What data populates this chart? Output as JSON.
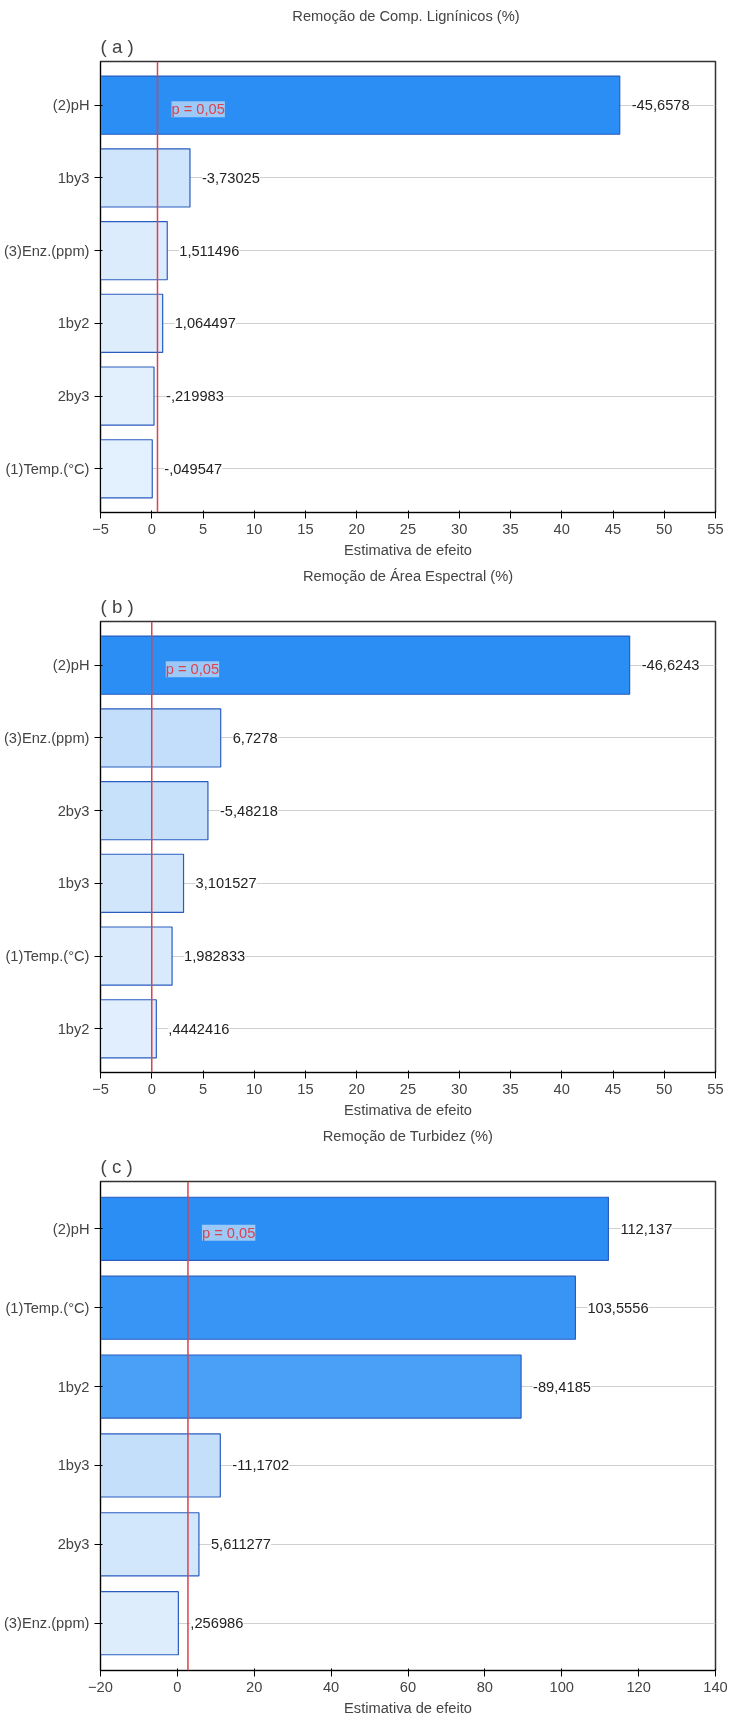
{
  "chart_data": [
    {
      "type": "bar",
      "orientation": "horizontal",
      "title": "Remoção de Comp. Lignínicos  (%)",
      "xlabel": "Estimativa de efeito",
      "categories": [
        "(2)pH",
        "1by3",
        "(3)Enz.(ppm)",
        "1by2",
        "2by3",
        "(1)Temp.(°C)"
      ],
      "base": [
        -5,
        -5,
        -5,
        -5,
        -5,
        -5
      ],
      "values": [
        50.6578,
        8.73025,
        6.511496,
        6.064497,
        5.219983,
        5.049547
      ],
      "annotations": [
        "( a )",
        {
          "text": "-45,6578",
          "x": 45.6578,
          "y": "(2)pH"
        },
        {
          "text": "-3,73025",
          "x": 3.73025,
          "y": "1by3"
        },
        {
          "text": "1,511496",
          "x": 1.511496,
          "y": "(3)Enz.(ppm)"
        },
        {
          "text": "1,064497",
          "x": 1.064497,
          "y": "1by2"
        },
        {
          "text": "-,219983",
          "x": 0.219983,
          "y": "2by3"
        },
        {
          "text": "-,049547",
          "x": 0.049547,
          "y": "(1)Temp.(°C)"
        },
        {
          "text": "p = 0,05",
          "x": 0.56,
          "y": "(2)pH"
        }
      ],
      "colors": [
        "#2b8ef5",
        "#cfe5fb",
        "#dcecfc",
        "#deedfc",
        "#e2effd",
        "#e3f0fd"
      ],
      "xlim": [
        -5,
        55
      ],
      "xticks": [
        -5,
        0,
        5,
        10,
        15,
        20,
        25,
        30,
        35,
        40,
        45,
        50,
        55
      ],
      "ref_lines": [
        {
          "axis": "x",
          "value": 0.56,
          "color": "#d9434f"
        }
      ],
      "grid": "y"
    },
    {
      "type": "bar",
      "orientation": "horizontal",
      "title": "Remoção de Área Espectral (%)",
      "xlabel": "Estimativa de efeito",
      "categories": [
        "(2)pH",
        "(3)Enz.(ppm)",
        "2by3",
        "1by3",
        "(1)Temp.(°C)",
        "1by2"
      ],
      "base": [
        -5,
        -5,
        -5,
        -5,
        -5,
        -5
      ],
      "values": [
        51.6243,
        11.7278,
        10.48218,
        8.101527,
        6.982833,
        5.4442416
      ],
      "annotations": [
        "( b )",
        {
          "text": "-46,6243",
          "x": 46.6243,
          "y": "(2)pH"
        },
        {
          "text": "6,7278",
          "x": 6.7278,
          "y": "(3)Enz.(ppm)"
        },
        {
          "text": "-5,48218",
          "x": 5.48218,
          "y": "2by3"
        },
        {
          "text": "3,101527",
          "x": 3.101527,
          "y": "1by3"
        },
        {
          "text": "1,982833",
          "x": 1.982833,
          "y": "(1)Temp.(°C)"
        },
        {
          "text": ",4442416",
          "x": 0.4442416,
          "y": "1by2"
        },
        {
          "text": "p = 0,05",
          "x": 0,
          "y": "(2)pH"
        }
      ],
      "colors": [
        "#2b8ef5",
        "#c2defa",
        "#c8e1fa",
        "#d1e6fb",
        "#d8eafc",
        "#e0eefd"
      ],
      "xlim": [
        -5,
        55
      ],
      "xticks": [
        -5,
        0,
        5,
        10,
        15,
        20,
        25,
        30,
        35,
        40,
        45,
        50,
        55
      ],
      "ref_lines": [
        {
          "axis": "x",
          "value": 0,
          "color": "#d9434f"
        }
      ],
      "grid": "y"
    },
    {
      "type": "bar",
      "orientation": "horizontal",
      "title": "Remoção de Turbidez (%)",
      "xlabel": "Estimativa de efeito",
      "categories": [
        "(2)pH",
        "(1)Temp.(°C)",
        "1by2",
        "1by3",
        "2by3",
        "(3)Enz.(ppm)"
      ],
      "base": [
        -20,
        -20,
        -20,
        -20,
        -20,
        -20
      ],
      "values": [
        132.137,
        123.5556,
        109.4185,
        31.1702,
        25.611277,
        20.256986
      ],
      "annotations": [
        "( c )",
        {
          "text": "112,137",
          "x": 112.137,
          "y": "(2)pH"
        },
        {
          "text": "103,5556",
          "x": 103.5556,
          "y": "(1)Temp.(°C)"
        },
        {
          "text": "-89,4185",
          "x": 89.4185,
          "y": "1by2"
        },
        {
          "text": "-11,1702",
          "x": 11.1702,
          "y": "1by3"
        },
        {
          "text": "5,611277",
          "x": 5.611277,
          "y": "2by3"
        },
        {
          "text": ",256986",
          "x": 0.256986,
          "y": "(3)Enz.(ppm)"
        },
        {
          "text": "p = 0,05",
          "x": 2.75,
          "y": "(2)pH"
        }
      ],
      "colors": [
        "#2b8ef5",
        "#3894f5",
        "#4a9ff6",
        "#c4dffa",
        "#d2e7fb",
        "#ddedfc"
      ],
      "xlim": [
        -20,
        140
      ],
      "xticks": [
        -20,
        0,
        20,
        40,
        60,
        80,
        100,
        120,
        140
      ],
      "ref_lines": [
        {
          "axis": "x",
          "value": 2.75,
          "color": "#d9434f"
        }
      ],
      "grid": "y"
    }
  ]
}
